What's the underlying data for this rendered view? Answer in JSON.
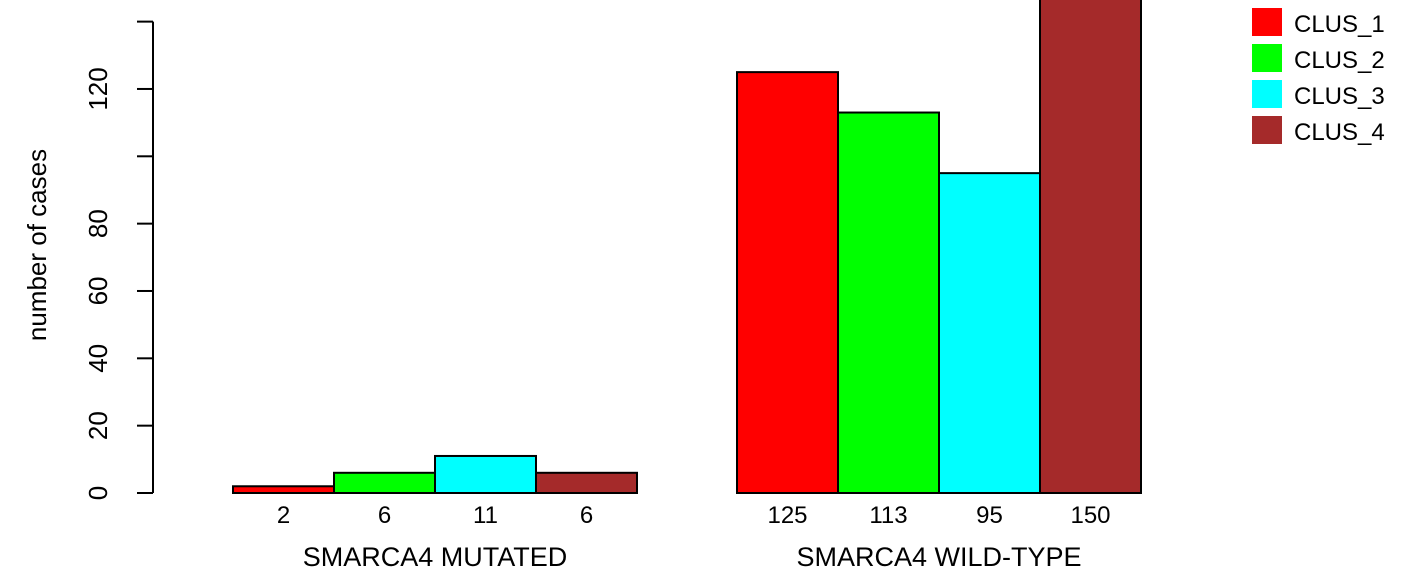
{
  "chart_data": {
    "type": "bar",
    "ylabel": "number of cases",
    "ylim": [
      0,
      140
    ],
    "yticks": [
      0,
      20,
      40,
      60,
      80,
      100,
      120,
      140
    ],
    "ytick_labels": [
      "0",
      "20",
      "40",
      "60",
      "80",
      "",
      "120",
      ""
    ],
    "groups": [
      {
        "label": "SMARCA4 MUTATED",
        "values": [
          2,
          6,
          11,
          6
        ],
        "value_labels": [
          "2",
          "6",
          "11",
          "6"
        ]
      },
      {
        "label": "SMARCA4 WILD-TYPE",
        "values": [
          125,
          113,
          95,
          150
        ],
        "value_labels": [
          "125",
          "113",
          "95",
          "150"
        ]
      }
    ],
    "series": [
      {
        "name": "CLUS_1",
        "color": "#ff0000"
      },
      {
        "name": "CLUS_2",
        "color": "#00ff00"
      },
      {
        "name": "CLUS_3",
        "color": "#00ffff"
      },
      {
        "name": "CLUS_4",
        "color": "#a52a2a"
      }
    ],
    "legend_position": "top-right",
    "grid": false
  }
}
